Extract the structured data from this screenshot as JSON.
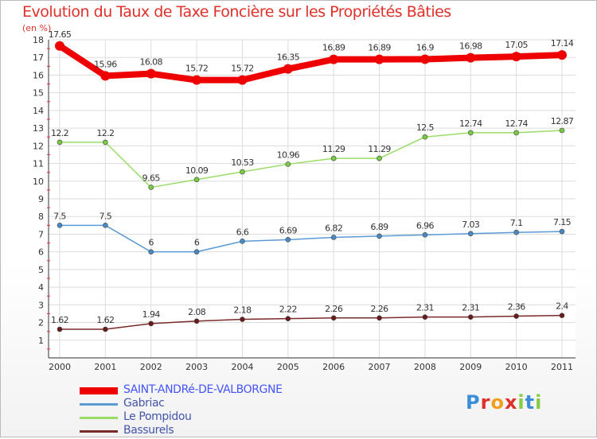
{
  "chart_data": {
    "type": "line",
    "title": "Evolution du Taux de Taxe Foncière sur les Propriétés Bâties",
    "unit_label": "(en %)",
    "categories": [
      "2000",
      "2001",
      "2002",
      "2003",
      "2004",
      "2005",
      "2006",
      "2007",
      "2008",
      "2009",
      "2010",
      "2011"
    ],
    "ylim": [
      0,
      18
    ],
    "yticks": [
      1,
      2,
      3,
      4,
      5,
      6,
      7,
      8,
      9,
      10,
      11,
      12,
      13,
      14,
      15,
      16,
      17,
      18
    ],
    "grid": true,
    "legend_position": "bottom-left",
    "series": [
      {
        "name": "SAINT-ANDRé-DE-VALBORGNE",
        "color": "#ee0000",
        "marker_color": "#ee0000",
        "weight": "thick",
        "values": [
          17.65,
          15.96,
          16.08,
          15.72,
          15.72,
          16.35,
          16.89,
          16.89,
          16.9,
          16.98,
          17.05,
          17.14
        ],
        "labels": [
          "17.65",
          "15.96",
          "16.08",
          "15.72",
          "15.72",
          "16.35",
          "16.89",
          "16.89",
          "16.9",
          "16.98",
          "17.05",
          "17.14"
        ]
      },
      {
        "name": "Gabriac",
        "color": "#5b9bd5",
        "marker_color": "#4a8ac4",
        "weight": "thin",
        "values": [
          7.5,
          7.5,
          6,
          6,
          6.6,
          6.69,
          6.82,
          6.89,
          6.96,
          7.03,
          7.1,
          7.15
        ],
        "labels": [
          "7.5",
          "7.5",
          "6",
          "6",
          "6.6",
          "6.69",
          "6.82",
          "6.89",
          "6.96",
          "7.03",
          "7.1",
          "7.15"
        ]
      },
      {
        "name": "Le Pompidou",
        "color": "#99dd66",
        "marker_color": "#77cc44",
        "weight": "thin",
        "values": [
          12.2,
          12.2,
          9.65,
          10.09,
          10.53,
          10.96,
          11.29,
          11.29,
          12.5,
          12.74,
          12.74,
          12.87
        ],
        "labels": [
          "12.2",
          "12.2",
          "9.65",
          "10.09",
          "10.53",
          "10.96",
          "11.29",
          "11.29",
          "12.5",
          "12.74",
          "12.74",
          "12.87"
        ]
      },
      {
        "name": "Bassurels",
        "color": "#7a2a2a",
        "marker_color": "#6a1a1a",
        "weight": "thin",
        "values": [
          1.62,
          1.62,
          1.94,
          2.08,
          2.18,
          2.22,
          2.26,
          2.26,
          2.31,
          2.31,
          2.36,
          2.4
        ],
        "labels": [
          "1.62",
          "1.62",
          "1.94",
          "2.08",
          "2.18",
          "2.22",
          "2.26",
          "2.26",
          "2.31",
          "2.31",
          "2.36",
          "2.4"
        ]
      }
    ]
  },
  "legend_colors": {
    "series0": "#4455ff",
    "others": "#4455aa"
  },
  "logo": {
    "text": [
      "P",
      "r",
      "o",
      "x",
      "i",
      "t",
      "i"
    ],
    "colors": [
      "#3a8fd8",
      "#e0302a",
      "#f0a020",
      "#e0302a",
      "#88cc44",
      "#3a8fd8",
      "#88cc44"
    ]
  }
}
